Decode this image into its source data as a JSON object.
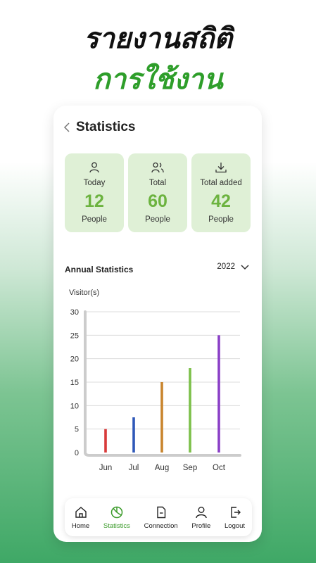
{
  "headline": {
    "line1": "รายงานสถิติ",
    "line2": "การใช้งาน"
  },
  "header": {
    "title": "Statistics"
  },
  "cards": [
    {
      "label": "Today",
      "value": "12",
      "unit": "People",
      "icon": "user-icon"
    },
    {
      "label": "Total",
      "value": "60",
      "unit": "People",
      "icon": "users-icon"
    },
    {
      "label": "Total added",
      "value": "42",
      "unit": "People",
      "icon": "download-icon"
    }
  ],
  "annual": {
    "title": "Annual Statistics",
    "year": "2022"
  },
  "chart_data": {
    "type": "bar",
    "ylabel": "Visitor(s)",
    "categories": [
      "Jun",
      "Jul",
      "Aug",
      "Sep",
      "Oct"
    ],
    "values": [
      5,
      7.5,
      15,
      18,
      25
    ],
    "colors": [
      "#d83a3a",
      "#2f58b8",
      "#c9852e",
      "#7cc04a",
      "#8a3fc7"
    ],
    "ylim": [
      0,
      30
    ],
    "yticks": [
      0,
      5,
      10,
      15,
      20,
      25,
      30
    ],
    "grid": true
  },
  "nav": {
    "items": [
      {
        "label": "Home",
        "icon": "home-icon",
        "active": false
      },
      {
        "label": "Statistics",
        "icon": "pie-chart-icon",
        "active": true
      },
      {
        "label": "Connection",
        "icon": "document-icon",
        "active": false
      },
      {
        "label": "Profile",
        "icon": "profile-icon",
        "active": false
      },
      {
        "label": "Logout",
        "icon": "logout-icon",
        "active": false
      }
    ]
  },
  "colors": {
    "accent": "#6cb33f",
    "card_bg": "#dff0d6",
    "active_nav": "#3b9b2a"
  }
}
